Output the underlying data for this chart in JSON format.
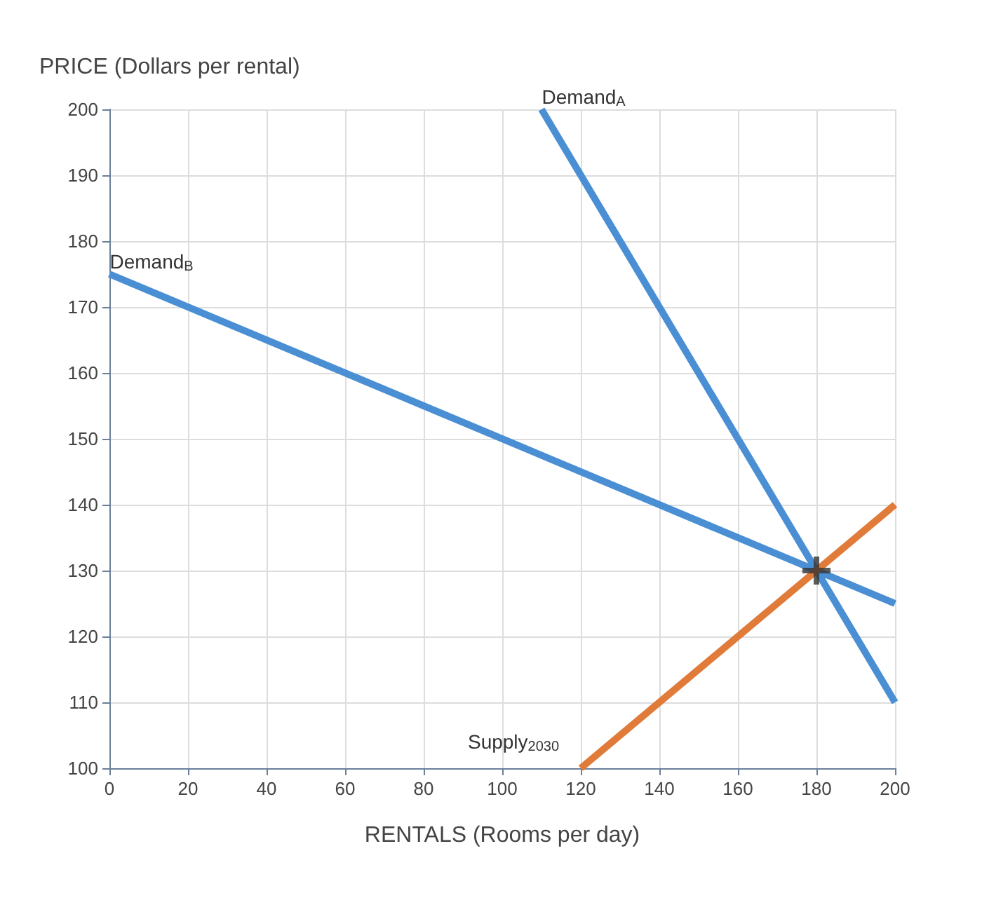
{
  "chart_data": {
    "type": "line",
    "xlabel": "RENTALS (Rooms per day)",
    "ylabel": "PRICE (Dollars per rental)",
    "xlim": [
      0,
      200
    ],
    "xticks": [
      0,
      20,
      40,
      60,
      80,
      100,
      120,
      140,
      160,
      180,
      200
    ],
    "ylim": [
      100,
      200
    ],
    "yticks": [
      100,
      110,
      120,
      130,
      140,
      150,
      160,
      170,
      180,
      190,
      200
    ],
    "grid": true,
    "legend": false,
    "marker": "none",
    "line_style": "solid",
    "series": [
      {
        "name": "Demand$_{A}$",
        "color": "#4a8fd4",
        "x": [
          110,
          200
        ],
        "values": [
          200,
          110
        ]
      },
      {
        "name": "Demand$_{B}$",
        "color": "#4a8fd4",
        "x": [
          0,
          200
        ],
        "values": [
          175,
          125
        ]
      },
      {
        "name": "Supply$_{2030}$",
        "color": "#e07b39",
        "x": [
          120,
          200
        ],
        "values": [
          100,
          140
        ]
      },
      {
        "type": "scatter",
        "marker": "cross",
        "color": "#333333",
        "x": [
          180
        ],
        "values": [
          130
        ]
      }
    ]
  }
}
